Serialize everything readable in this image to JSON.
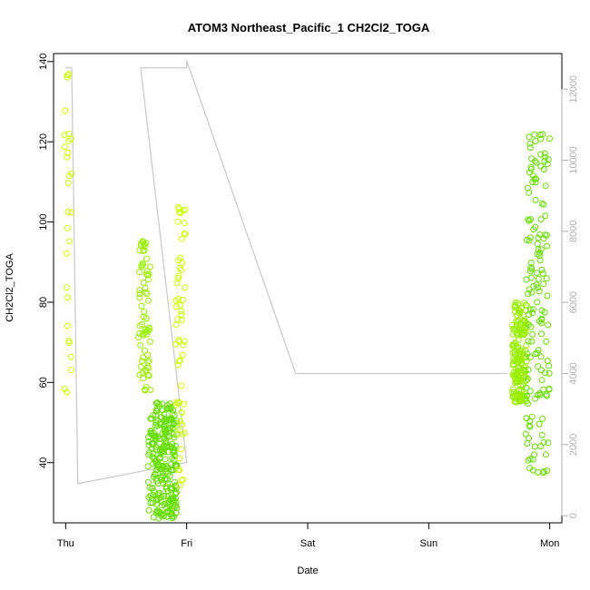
{
  "chart_data": {
    "type": "scatter",
    "title": "ATOM3 Northeast_Pacific_1 CH2Cl2_TOGA",
    "xlabel": "Date",
    "ylabel": "CH2Cl2_TOGA",
    "x_ticks": [
      "Thu",
      "Fri",
      "Sat",
      "Sun",
      "Mon"
    ],
    "y_ticks": [
      40,
      60,
      80,
      100,
      120,
      140
    ],
    "y_right_ticks": [
      0,
      2000,
      4000,
      6000,
      8000,
      10000,
      12000
    ],
    "xlim": [
      "Thu 00:00",
      "Mon 04:00"
    ],
    "ylim": [
      25,
      142
    ],
    "ylim_right": [
      -200,
      13000
    ],
    "grid": false,
    "legend": "none",
    "series": [
      {
        "type": "line",
        "axis": "right",
        "color": "#c8c8c8",
        "points": [
          [
            0.0,
            12600
          ],
          [
            0.05,
            12600
          ],
          [
            0.1,
            900
          ],
          [
            1.0,
            1500
          ],
          [
            0.62,
            12600
          ],
          [
            1.0,
            12600
          ],
          [
            1.0,
            12800
          ],
          [
            1.9,
            4000
          ],
          [
            3.65,
            4000
          ]
        ]
      },
      {
        "type": "scatter",
        "axis": "left",
        "colors": [
          "#ccff00",
          "#99ee00",
          "#66dd00"
        ],
        "clusters": [
          {
            "day": 0.02,
            "spread": 0.03,
            "count": 28,
            "y_min": 57,
            "y_max": 140
          },
          {
            "day": 0.65,
            "spread": 0.05,
            "count": 70,
            "y_min": 58,
            "y_max": 98
          },
          {
            "day": 0.8,
            "spread": 0.12,
            "count": 260,
            "y_min": 26,
            "y_max": 55
          },
          {
            "day": 0.95,
            "spread": 0.04,
            "count": 60,
            "y_min": 34,
            "y_max": 104
          },
          {
            "day": 3.75,
            "spread": 0.06,
            "count": 180,
            "y_min": 55,
            "y_max": 80
          },
          {
            "day": 3.9,
            "spread": 0.1,
            "count": 150,
            "y_min": 37,
            "y_max": 122
          }
        ]
      }
    ]
  }
}
